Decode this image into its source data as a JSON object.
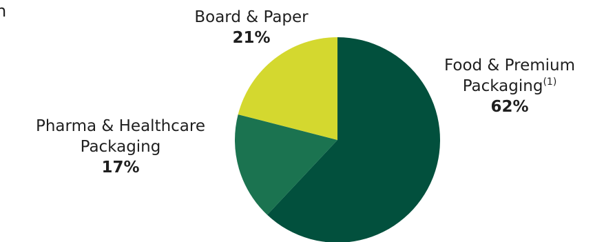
{
  "fragment_text": "n",
  "chart_data": {
    "type": "pie",
    "slices": [
      {
        "name": "Food & Premium Packaging",
        "footnote": "(1)",
        "value": 62,
        "value_label": "62%",
        "color": "#02503d"
      },
      {
        "name": "Pharma & Healthcare Packaging",
        "value": 17,
        "value_label": "17%",
        "color": "#1b7350"
      },
      {
        "name": "Board & Paper",
        "value": 21,
        "value_label": "21%",
        "color": "#d4d82f"
      }
    ],
    "labels": {
      "food": {
        "line1": "Food & Premium",
        "line2": "Packaging",
        "footnote": "(1)",
        "pct": "62%"
      },
      "pharma": {
        "line1": "Pharma & Healthcare",
        "line2": "Packaging",
        "pct": "17%"
      },
      "board": {
        "line1": "Board & Paper",
        "pct": "21%"
      }
    }
  }
}
